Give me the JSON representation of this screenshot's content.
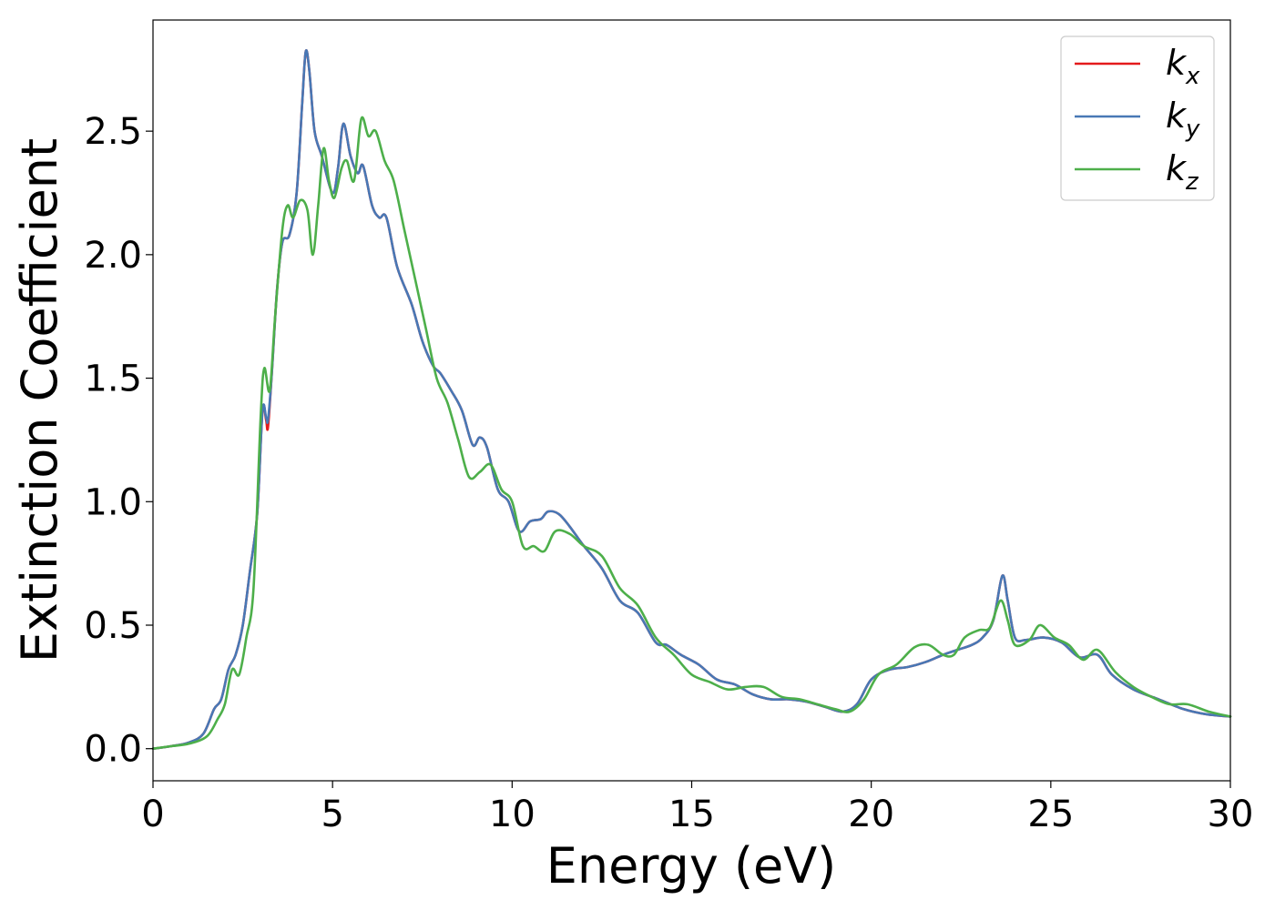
{
  "chart_data": {
    "type": "line",
    "title": "",
    "xlabel": "Energy (eV)",
    "ylabel": "Extinction Coefficient",
    "xlim": [
      0,
      30
    ],
    "ylim": [
      -0.13,
      2.95
    ],
    "xticks": [
      0,
      5,
      10,
      15,
      20,
      25,
      30
    ],
    "xtick_labels": [
      "0",
      "5",
      "10",
      "15",
      "20",
      "25",
      "30"
    ],
    "yticks": [
      0.0,
      0.5,
      1.0,
      1.5,
      2.0,
      2.5
    ],
    "ytick_labels": [
      "0.0",
      "0.5",
      "1.0",
      "1.5",
      "2.0",
      "2.5"
    ],
    "grid": false,
    "legend": {
      "position": "top-right"
    },
    "series": [
      {
        "name": "k_x",
        "legend_main": "k",
        "legend_sub": "x",
        "color": "#e41a1c",
        "points": [
          [
            0,
            0
          ],
          [
            0.5,
            0.01
          ],
          [
            1.0,
            0.025
          ],
          [
            1.4,
            0.06
          ],
          [
            1.7,
            0.16
          ],
          [
            1.9,
            0.2
          ],
          [
            2.1,
            0.32
          ],
          [
            2.3,
            0.38
          ],
          [
            2.5,
            0.5
          ],
          [
            2.7,
            0.72
          ],
          [
            2.9,
            0.95
          ],
          [
            3.05,
            1.37
          ],
          [
            3.15,
            1.33
          ],
          [
            3.2,
            1.3
          ],
          [
            3.3,
            1.5
          ],
          [
            3.45,
            1.85
          ],
          [
            3.6,
            2.05
          ],
          [
            3.8,
            2.08
          ],
          [
            4.0,
            2.25
          ],
          [
            4.15,
            2.6
          ],
          [
            4.25,
            2.82
          ],
          [
            4.35,
            2.75
          ],
          [
            4.5,
            2.5
          ],
          [
            4.7,
            2.4
          ],
          [
            5.0,
            2.25
          ],
          [
            5.15,
            2.35
          ],
          [
            5.3,
            2.53
          ],
          [
            5.5,
            2.4
          ],
          [
            5.7,
            2.33
          ],
          [
            5.85,
            2.36
          ],
          [
            6.1,
            2.2
          ],
          [
            6.3,
            2.15
          ],
          [
            6.5,
            2.15
          ],
          [
            6.8,
            1.95
          ],
          [
            7.2,
            1.8
          ],
          [
            7.5,
            1.65
          ],
          [
            7.8,
            1.55
          ],
          [
            8.0,
            1.52
          ],
          [
            8.3,
            1.45
          ],
          [
            8.6,
            1.37
          ],
          [
            8.9,
            1.23
          ],
          [
            9.1,
            1.26
          ],
          [
            9.3,
            1.22
          ],
          [
            9.6,
            1.05
          ],
          [
            9.9,
            1.0
          ],
          [
            10.2,
            0.88
          ],
          [
            10.5,
            0.92
          ],
          [
            10.8,
            0.93
          ],
          [
            11.0,
            0.96
          ],
          [
            11.3,
            0.95
          ],
          [
            11.6,
            0.9
          ],
          [
            12.0,
            0.82
          ],
          [
            12.5,
            0.73
          ],
          [
            13.0,
            0.6
          ],
          [
            13.5,
            0.55
          ],
          [
            14.0,
            0.43
          ],
          [
            14.3,
            0.42
          ],
          [
            14.7,
            0.38
          ],
          [
            15.2,
            0.34
          ],
          [
            15.7,
            0.28
          ],
          [
            16.2,
            0.26
          ],
          [
            16.7,
            0.22
          ],
          [
            17.2,
            0.2
          ],
          [
            17.7,
            0.2
          ],
          [
            18.2,
            0.19
          ],
          [
            18.7,
            0.17
          ],
          [
            19.2,
            0.15
          ],
          [
            19.6,
            0.18
          ],
          [
            20.0,
            0.28
          ],
          [
            20.5,
            0.32
          ],
          [
            21.0,
            0.33
          ],
          [
            21.5,
            0.35
          ],
          [
            22.0,
            0.38
          ],
          [
            22.4,
            0.4
          ],
          [
            22.8,
            0.42
          ],
          [
            23.1,
            0.45
          ],
          [
            23.4,
            0.52
          ],
          [
            23.65,
            0.7
          ],
          [
            23.8,
            0.6
          ],
          [
            24.0,
            0.45
          ],
          [
            24.3,
            0.44
          ],
          [
            24.8,
            0.45
          ],
          [
            25.3,
            0.43
          ],
          [
            25.8,
            0.37
          ],
          [
            26.3,
            0.38
          ],
          [
            26.7,
            0.3
          ],
          [
            27.3,
            0.24
          ],
          [
            28.0,
            0.2
          ],
          [
            28.7,
            0.16
          ],
          [
            29.3,
            0.14
          ],
          [
            30.0,
            0.13
          ]
        ]
      },
      {
        "name": "k_y",
        "legend_main": "k",
        "legend_sub": "y",
        "color": "#4878b5",
        "points": [
          [
            0,
            0
          ],
          [
            0.5,
            0.01
          ],
          [
            1.0,
            0.025
          ],
          [
            1.4,
            0.06
          ],
          [
            1.7,
            0.16
          ],
          [
            1.9,
            0.2
          ],
          [
            2.1,
            0.32
          ],
          [
            2.3,
            0.38
          ],
          [
            2.5,
            0.5
          ],
          [
            2.7,
            0.72
          ],
          [
            2.9,
            0.95
          ],
          [
            3.05,
            1.37
          ],
          [
            3.15,
            1.34
          ],
          [
            3.2,
            1.33
          ],
          [
            3.3,
            1.5
          ],
          [
            3.45,
            1.85
          ],
          [
            3.6,
            2.05
          ],
          [
            3.8,
            2.08
          ],
          [
            4.0,
            2.25
          ],
          [
            4.15,
            2.6
          ],
          [
            4.25,
            2.82
          ],
          [
            4.35,
            2.75
          ],
          [
            4.5,
            2.5
          ],
          [
            4.7,
            2.4
          ],
          [
            5.0,
            2.25
          ],
          [
            5.15,
            2.35
          ],
          [
            5.3,
            2.53
          ],
          [
            5.5,
            2.4
          ],
          [
            5.7,
            2.33
          ],
          [
            5.85,
            2.36
          ],
          [
            6.1,
            2.2
          ],
          [
            6.3,
            2.15
          ],
          [
            6.5,
            2.15
          ],
          [
            6.8,
            1.95
          ],
          [
            7.2,
            1.8
          ],
          [
            7.5,
            1.65
          ],
          [
            7.8,
            1.55
          ],
          [
            8.0,
            1.52
          ],
          [
            8.3,
            1.45
          ],
          [
            8.6,
            1.37
          ],
          [
            8.9,
            1.23
          ],
          [
            9.1,
            1.26
          ],
          [
            9.3,
            1.22
          ],
          [
            9.6,
            1.05
          ],
          [
            9.9,
            1.0
          ],
          [
            10.2,
            0.88
          ],
          [
            10.5,
            0.92
          ],
          [
            10.8,
            0.93
          ],
          [
            11.0,
            0.96
          ],
          [
            11.3,
            0.95
          ],
          [
            11.6,
            0.9
          ],
          [
            12.0,
            0.82
          ],
          [
            12.5,
            0.73
          ],
          [
            13.0,
            0.6
          ],
          [
            13.5,
            0.55
          ],
          [
            14.0,
            0.43
          ],
          [
            14.3,
            0.42
          ],
          [
            14.7,
            0.38
          ],
          [
            15.2,
            0.34
          ],
          [
            15.7,
            0.28
          ],
          [
            16.2,
            0.26
          ],
          [
            16.7,
            0.22
          ],
          [
            17.2,
            0.2
          ],
          [
            17.7,
            0.2
          ],
          [
            18.2,
            0.19
          ],
          [
            18.7,
            0.17
          ],
          [
            19.2,
            0.15
          ],
          [
            19.6,
            0.18
          ],
          [
            20.0,
            0.28
          ],
          [
            20.5,
            0.32
          ],
          [
            21.0,
            0.33
          ],
          [
            21.5,
            0.35
          ],
          [
            22.0,
            0.38
          ],
          [
            22.4,
            0.4
          ],
          [
            22.8,
            0.42
          ],
          [
            23.1,
            0.45
          ],
          [
            23.4,
            0.52
          ],
          [
            23.65,
            0.7
          ],
          [
            23.8,
            0.6
          ],
          [
            24.0,
            0.45
          ],
          [
            24.3,
            0.44
          ],
          [
            24.8,
            0.45
          ],
          [
            25.3,
            0.43
          ],
          [
            25.8,
            0.37
          ],
          [
            26.3,
            0.38
          ],
          [
            26.7,
            0.3
          ],
          [
            27.3,
            0.24
          ],
          [
            28.0,
            0.2
          ],
          [
            28.7,
            0.16
          ],
          [
            29.3,
            0.14
          ],
          [
            30.0,
            0.13
          ]
        ]
      },
      {
        "name": "k_z",
        "legend_main": "k",
        "legend_sub": "z",
        "color": "#4daf4a",
        "points": [
          [
            0,
            0
          ],
          [
            0.5,
            0.01
          ],
          [
            1.0,
            0.02
          ],
          [
            1.5,
            0.05
          ],
          [
            1.8,
            0.12
          ],
          [
            2.0,
            0.18
          ],
          [
            2.2,
            0.32
          ],
          [
            2.4,
            0.3
          ],
          [
            2.6,
            0.45
          ],
          [
            2.8,
            0.65
          ],
          [
            3.0,
            1.35
          ],
          [
            3.1,
            1.54
          ],
          [
            3.25,
            1.45
          ],
          [
            3.4,
            1.75
          ],
          [
            3.6,
            2.1
          ],
          [
            3.75,
            2.2
          ],
          [
            3.9,
            2.15
          ],
          [
            4.1,
            2.22
          ],
          [
            4.3,
            2.18
          ],
          [
            4.45,
            2.0
          ],
          [
            4.6,
            2.2
          ],
          [
            4.75,
            2.43
          ],
          [
            4.9,
            2.3
          ],
          [
            5.05,
            2.23
          ],
          [
            5.25,
            2.35
          ],
          [
            5.4,
            2.38
          ],
          [
            5.6,
            2.3
          ],
          [
            5.8,
            2.55
          ],
          [
            6.0,
            2.48
          ],
          [
            6.2,
            2.5
          ],
          [
            6.45,
            2.38
          ],
          [
            6.7,
            2.3
          ],
          [
            7.0,
            2.1
          ],
          [
            7.3,
            1.9
          ],
          [
            7.6,
            1.7
          ],
          [
            7.9,
            1.5
          ],
          [
            8.2,
            1.4
          ],
          [
            8.5,
            1.25
          ],
          [
            8.8,
            1.1
          ],
          [
            9.1,
            1.12
          ],
          [
            9.4,
            1.15
          ],
          [
            9.7,
            1.05
          ],
          [
            10.0,
            1.0
          ],
          [
            10.3,
            0.82
          ],
          [
            10.6,
            0.82
          ],
          [
            10.9,
            0.8
          ],
          [
            11.2,
            0.88
          ],
          [
            11.6,
            0.87
          ],
          [
            12.0,
            0.82
          ],
          [
            12.5,
            0.78
          ],
          [
            13.0,
            0.65
          ],
          [
            13.5,
            0.58
          ],
          [
            14.0,
            0.45
          ],
          [
            14.5,
            0.38
          ],
          [
            15.0,
            0.3
          ],
          [
            15.5,
            0.27
          ],
          [
            16.0,
            0.24
          ],
          [
            16.5,
            0.25
          ],
          [
            17.0,
            0.25
          ],
          [
            17.5,
            0.21
          ],
          [
            18.0,
            0.2
          ],
          [
            18.5,
            0.18
          ],
          [
            19.0,
            0.16
          ],
          [
            19.4,
            0.15
          ],
          [
            19.8,
            0.2
          ],
          [
            20.2,
            0.3
          ],
          [
            20.7,
            0.34
          ],
          [
            21.2,
            0.41
          ],
          [
            21.6,
            0.42
          ],
          [
            22.0,
            0.38
          ],
          [
            22.3,
            0.38
          ],
          [
            22.6,
            0.45
          ],
          [
            23.0,
            0.48
          ],
          [
            23.3,
            0.49
          ],
          [
            23.6,
            0.6
          ],
          [
            23.8,
            0.52
          ],
          [
            24.0,
            0.42
          ],
          [
            24.4,
            0.44
          ],
          [
            24.7,
            0.5
          ],
          [
            25.1,
            0.45
          ],
          [
            25.5,
            0.42
          ],
          [
            25.9,
            0.36
          ],
          [
            26.3,
            0.4
          ],
          [
            26.8,
            0.31
          ],
          [
            27.3,
            0.25
          ],
          [
            27.8,
            0.21
          ],
          [
            28.3,
            0.18
          ],
          [
            28.8,
            0.18
          ],
          [
            29.4,
            0.15
          ],
          [
            30.0,
            0.13
          ]
        ]
      }
    ]
  }
}
